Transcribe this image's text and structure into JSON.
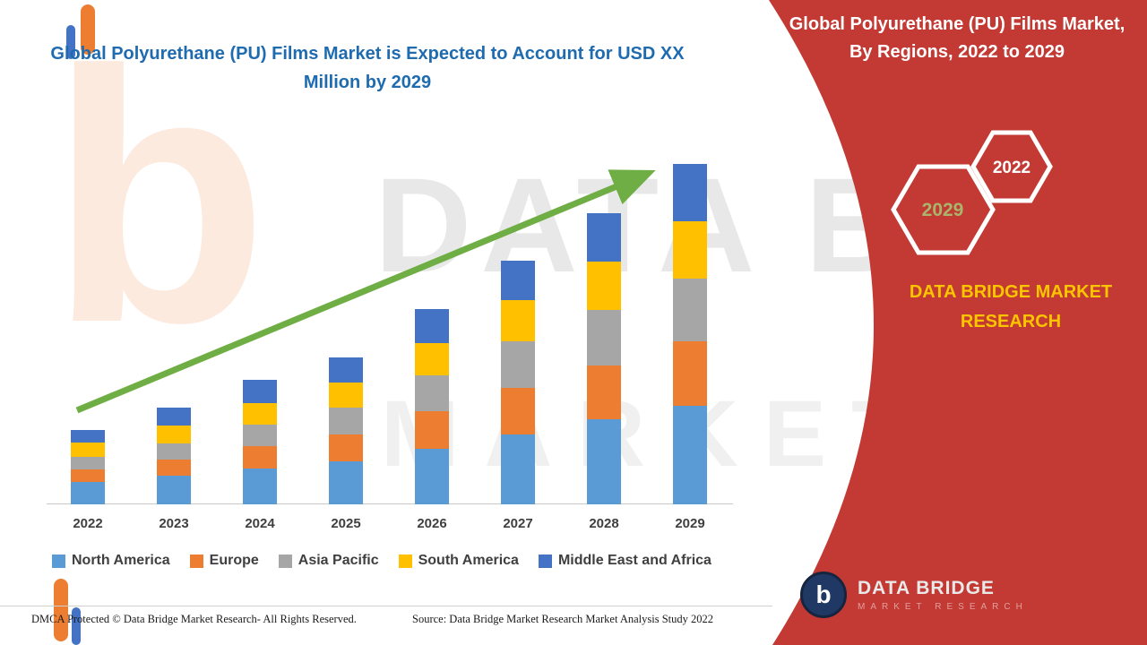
{
  "header": {
    "main_title": "Global Polyurethane (PU) Films Market is Expected to Account for USD XX Million by 2029"
  },
  "side_panel": {
    "title": "Global Polyurethane (PU) Films Market, By Regions, 2022 to 2029",
    "hexagon_left_label": "2029",
    "hexagon_right_label": "2022",
    "brand_name": "DATA BRIDGE MARKET RESEARCH",
    "logo": {
      "mark_letter": "b",
      "title": "DATA BRIDGE",
      "subtitle": "MARKET RESEARCH"
    }
  },
  "watermark": {
    "ghost_letter": "b",
    "line1": "DATA BRIDGE",
    "line2": "MARKET RESEARCH"
  },
  "footer": {
    "dmca": "DMCA Protected © Data Bridge Market Research- All Rights Reserved.",
    "source": "Source: Data Bridge Market Research Market Analysis Study 2022"
  },
  "chart_data": {
    "type": "bar",
    "stacked": true,
    "title": "Global Polyurethane (PU) Films Market, By Regions, 2022 to 2029",
    "categories": [
      "2022",
      "2023",
      "2024",
      "2025",
      "2026",
      "2027",
      "2028",
      "2029"
    ],
    "series": [
      {
        "name": "North America",
        "color": "#5b9bd5",
        "values": [
          25,
          32,
          40,
          48,
          62,
          78,
          95,
          110
        ]
      },
      {
        "name": "Europe",
        "color": "#ed7d31",
        "values": [
          14,
          18,
          25,
          30,
          42,
          52,
          60,
          72
        ]
      },
      {
        "name": "Asia Pacific",
        "color": "#a6a6a6",
        "values": [
          14,
          18,
          24,
          30,
          40,
          52,
          62,
          70
        ]
      },
      {
        "name": "South America",
        "color": "#ffc000",
        "values": [
          16,
          20,
          24,
          28,
          36,
          46,
          54,
          64
        ]
      },
      {
        "name": "Middle East and Africa",
        "color": "#4472c4",
        "values": [
          14,
          20,
          26,
          28,
          38,
          44,
          54,
          64
        ]
      }
    ],
    "ylim": [
      0,
      400
    ],
    "xlabel": "",
    "ylabel": "",
    "gridlines": false,
    "legend_position": "bottom",
    "trend_arrow": true
  },
  "colors": {
    "title_blue": "#1f6bb0",
    "panel_red": "#c23a33",
    "brand_yellow": "#fdc500",
    "hexagon_olive": "#a9b56a",
    "arrow_green": "#6fae44"
  }
}
